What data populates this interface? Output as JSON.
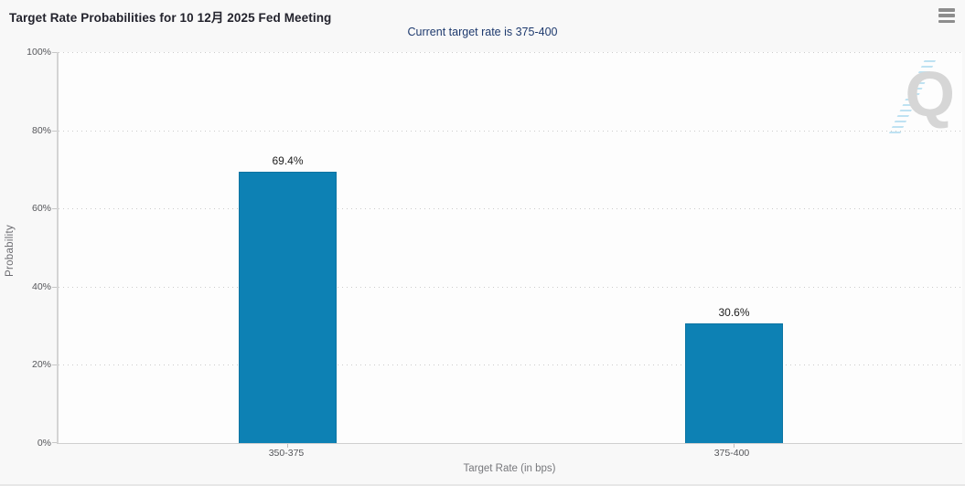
{
  "header": {
    "title": "Target Rate Probabilities for 10 12月 2025 Fed Meeting",
    "menu_icon": "hamburger-menu-icon"
  },
  "chart": {
    "subtitle": "Current target rate is 375-400",
    "watermark_letter": "Q",
    "y_axis": {
      "label": "Probability",
      "ticks": [
        "100%",
        "80%",
        "60%",
        "40%",
        "20%",
        "0%"
      ]
    },
    "x_axis": {
      "label": "Target Rate (in bps)"
    }
  },
  "chart_data": {
    "type": "bar",
    "title": "Target Rate Probabilities for 10 12月 2025 Fed Meeting",
    "subtitle": "Current target rate is 375-400",
    "categories": [
      "350-375",
      "375-400"
    ],
    "values": [
      69.4,
      30.6
    ],
    "value_labels": [
      "69.4%",
      "30.6%"
    ],
    "xlabel": "Target Rate (in bps)",
    "ylabel": "Probability",
    "ylim": [
      0,
      100
    ],
    "y_tick_step": 20,
    "grid": "horizontal dotted",
    "legend": "none",
    "bar_color": "#0d81b4"
  },
  "colors": {
    "background": "#f8f8f8",
    "bar": "#0d81b4",
    "title_text": "#23232d",
    "subtitle_text": "#1e3a6e",
    "axis_text": "#55565a",
    "gridline": "#cbcbcb",
    "watermark_gray": "#d6d6d6",
    "watermark_blue": "#a9d9ee",
    "menu_icon_gray": "#8d8d8d"
  }
}
